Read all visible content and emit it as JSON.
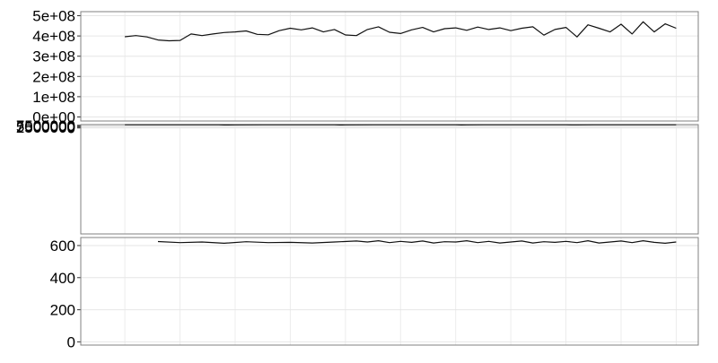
{
  "chart_data": [
    {
      "type": "line",
      "panel": "top",
      "title": "",
      "xlabel": "",
      "ylabel": "",
      "ylim": [
        -20000000,
        520000000
      ],
      "yticks": [
        0,
        100000000,
        200000000,
        300000000,
        400000000,
        500000000
      ],
      "ytick_labels": [
        "0e+00",
        "1e+08",
        "2e+08",
        "3e+08",
        "4e+08",
        "5e+08"
      ],
      "grid": true,
      "series": [
        {
          "x": [
            0,
            2,
            4,
            6,
            8,
            10,
            12,
            14,
            16,
            18,
            20,
            22,
            24,
            26,
            28,
            30,
            32,
            34,
            36,
            38,
            40,
            42,
            44,
            46,
            48,
            50,
            52,
            54,
            56,
            58,
            60,
            62,
            64,
            66,
            68,
            70,
            72,
            74,
            76,
            78,
            80,
            82,
            84,
            86,
            88,
            90,
            92,
            94,
            96,
            98,
            100
          ],
          "y": [
            396000000,
            402000000,
            395000000,
            380000000,
            376000000,
            378000000,
            410000000,
            402000000,
            410000000,
            417000000,
            420000000,
            425000000,
            408000000,
            406000000,
            426000000,
            438000000,
            430000000,
            440000000,
            420000000,
            432000000,
            405000000,
            402000000,
            432000000,
            445000000,
            418000000,
            412000000,
            430000000,
            442000000,
            420000000,
            436000000,
            440000000,
            428000000,
            444000000,
            432000000,
            440000000,
            426000000,
            438000000,
            445000000,
            404000000,
            432000000,
            442000000,
            395000000,
            455000000,
            438000000,
            420000000,
            458000000,
            410000000,
            470000000,
            420000000,
            460000000,
            438000000
          ]
        }
      ]
    },
    {
      "type": "line",
      "panel": "middle",
      "title": "",
      "xlabel": "",
      "ylabel": "",
      "ylim": [
        -300000000,
        9500000
      ],
      "yticks": [
        0,
        2500000,
        5000000,
        7500000
      ],
      "ytick_labels": [
        "0",
        "2500000",
        "5000000",
        "7500000"
      ],
      "grid": true,
      "series": [
        {
          "x": [
            0,
            5,
            10,
            15,
            17,
            18,
            20,
            25,
            30,
            38,
            39,
            40,
            45,
            50,
            55,
            60,
            61,
            62,
            65,
            70,
            75,
            80,
            81,
            82,
            85,
            90,
            95,
            100
          ],
          "y": [
            8900000,
            8950000,
            9050000,
            8990000,
            9000000,
            8600000,
            8850000,
            8980000,
            9000000,
            8960000,
            8600000,
            8820000,
            8880000,
            8990000,
            9010000,
            8980000,
            8600000,
            8800000,
            8900000,
            8980000,
            9000000,
            8950000,
            8700000,
            8850000,
            8900000,
            9000000,
            9050000,
            9000000
          ]
        }
      ]
    },
    {
      "type": "line",
      "panel": "bottom",
      "title": "",
      "xlabel": "",
      "ylabel": "",
      "ylim": [
        -20,
        650
      ],
      "yticks": [
        0,
        200,
        400,
        600
      ],
      "ytick_labels": [
        "0",
        "200",
        "400",
        "600"
      ],
      "grid": true,
      "series": [
        {
          "x": [
            6,
            10,
            14,
            18,
            22,
            26,
            30,
            34,
            38,
            42,
            44,
            46,
            48,
            50,
            52,
            54,
            56,
            58,
            60,
            62,
            64,
            66,
            68,
            70,
            72,
            74,
            76,
            78,
            80,
            82,
            84,
            86,
            88,
            90,
            92,
            94,
            96,
            98,
            100
          ],
          "y": [
            625,
            618,
            622,
            614,
            624,
            618,
            620,
            616,
            622,
            628,
            622,
            630,
            618,
            626,
            620,
            628,
            616,
            624,
            622,
            630,
            618,
            626,
            616,
            622,
            628,
            616,
            624,
            620,
            626,
            618,
            630,
            616,
            622,
            628,
            618,
            630,
            620,
            614,
            622
          ]
        }
      ]
    }
  ]
}
